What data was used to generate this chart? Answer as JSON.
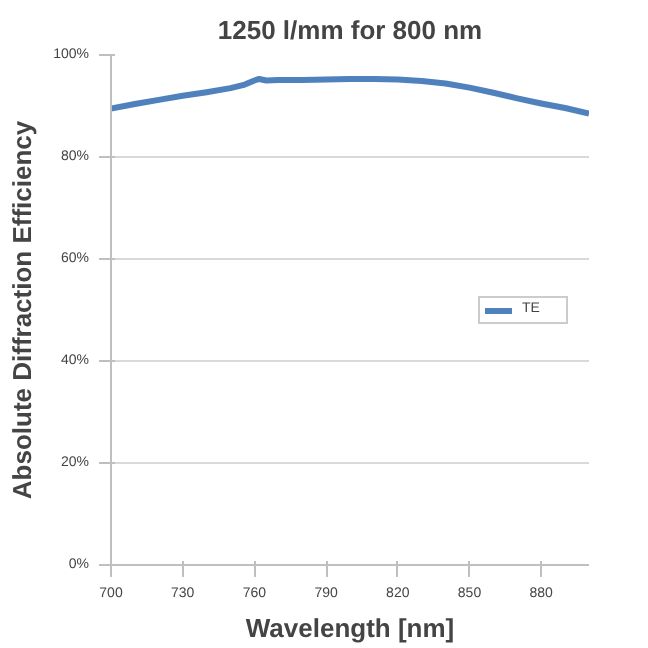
{
  "chart_data": {
    "type": "line",
    "title": "1250 l/mm for 800 nm",
    "xlabel": "Wavelength [nm]",
    "ylabel": "Absolute Diffraction Efficiency",
    "xlim": [
      700,
      900
    ],
    "xticks": [
      700,
      730,
      760,
      790,
      820,
      850,
      880
    ],
    "ylim": [
      0,
      100
    ],
    "yticks": [
      {
        "value": 0,
        "label": "0%"
      },
      {
        "value": 20,
        "label": "20%"
      },
      {
        "value": 40,
        "label": "40%"
      },
      {
        "value": 60,
        "label": "60%"
      },
      {
        "value": 80,
        "label": "80%"
      },
      {
        "value": 100,
        "label": "100%"
      }
    ],
    "grid": "y",
    "legend": "right",
    "marker": "none",
    "line_style": "solid",
    "series": [
      {
        "name": "TE",
        "color": "#4f81bd",
        "x": [
          700,
          710,
          720,
          730,
          740,
          750,
          756,
          760,
          762,
          765,
          770,
          780,
          790,
          800,
          810,
          820,
          830,
          840,
          850,
          860,
          870,
          880,
          890,
          900
        ],
        "values": [
          89.5,
          90.4,
          91.2,
          92.0,
          92.7,
          93.5,
          94.2,
          95.0,
          95.3,
          95.0,
          95.1,
          95.1,
          95.2,
          95.3,
          95.3,
          95.2,
          94.9,
          94.4,
          93.6,
          92.6,
          91.5,
          90.5,
          89.6,
          88.5
        ]
      }
    ]
  }
}
